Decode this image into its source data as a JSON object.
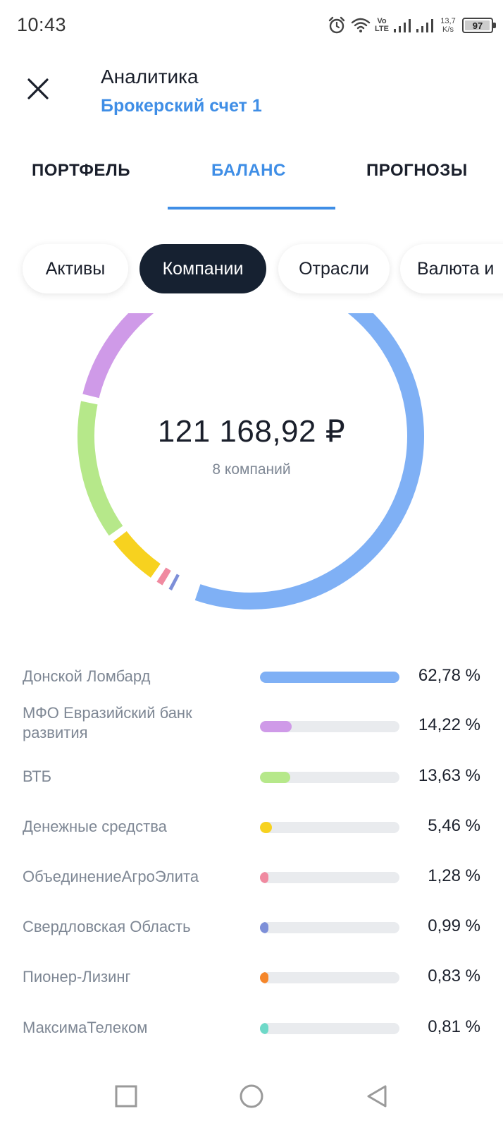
{
  "status_bar": {
    "time": "10:43",
    "net_speed_value": "13,7",
    "net_speed_unit": "K/s",
    "volte_top": "Vo",
    "volte_bottom": "LTE",
    "battery_level": "97",
    "battery_fraction": 0.97,
    "icons": [
      "alarm-icon",
      "wifi-icon",
      "signal-icon",
      "signal-icon"
    ]
  },
  "header": {
    "close_icon": "close-icon",
    "title": "Аналитика",
    "subtitle": "Брокерский счет 1"
  },
  "tabs": [
    {
      "label": "ПОРТФЕЛЬ",
      "active": false
    },
    {
      "label": "БАЛАНС",
      "active": true
    },
    {
      "label": "ПРОГНОЗЫ",
      "active": false
    }
  ],
  "chips": [
    {
      "label": "Активы",
      "active": false
    },
    {
      "label": "Компании",
      "active": true
    },
    {
      "label": "Отрасли",
      "active": false
    },
    {
      "label": "Валюта и",
      "active": false
    }
  ],
  "donut": {
    "total": "121 168,92 ₽",
    "caption": "8 компаний"
  },
  "breakdown": [
    {
      "name": "Донской Ломбард",
      "percent_label": "62,78 %",
      "percent": 62.78,
      "color": "#7fb0f5"
    },
    {
      "name": "МФО  Евразийский банк развития",
      "percent_label": "14,22 %",
      "percent": 14.22,
      "color": "#cf9ae8"
    },
    {
      "name": "ВТБ",
      "percent_label": "13,63 %",
      "percent": 13.63,
      "color": "#b6e88a"
    },
    {
      "name": "Денежные средства",
      "percent_label": "5,46 %",
      "percent": 5.46,
      "color": "#f7d21f"
    },
    {
      "name": "ОбъединениеАгроЭлита",
      "percent_label": "1,28 %",
      "percent": 1.28,
      "color": "#f08aa0"
    },
    {
      "name": "Свердловская Область",
      "percent_label": "0,99 %",
      "percent": 0.99,
      "color": "#7d8fd8"
    },
    {
      "name": "Пионер-Лизинг",
      "percent_label": "0,83 %",
      "percent": 0.83,
      "color": "#f5862a"
    },
    {
      "name": "МаксимаТелеком",
      "percent_label": "0,81 %",
      "percent": 0.81,
      "color": "#6ed9c8"
    }
  ],
  "navbar": {
    "icons": [
      "recent-apps-icon",
      "home-icon",
      "back-icon"
    ]
  }
}
